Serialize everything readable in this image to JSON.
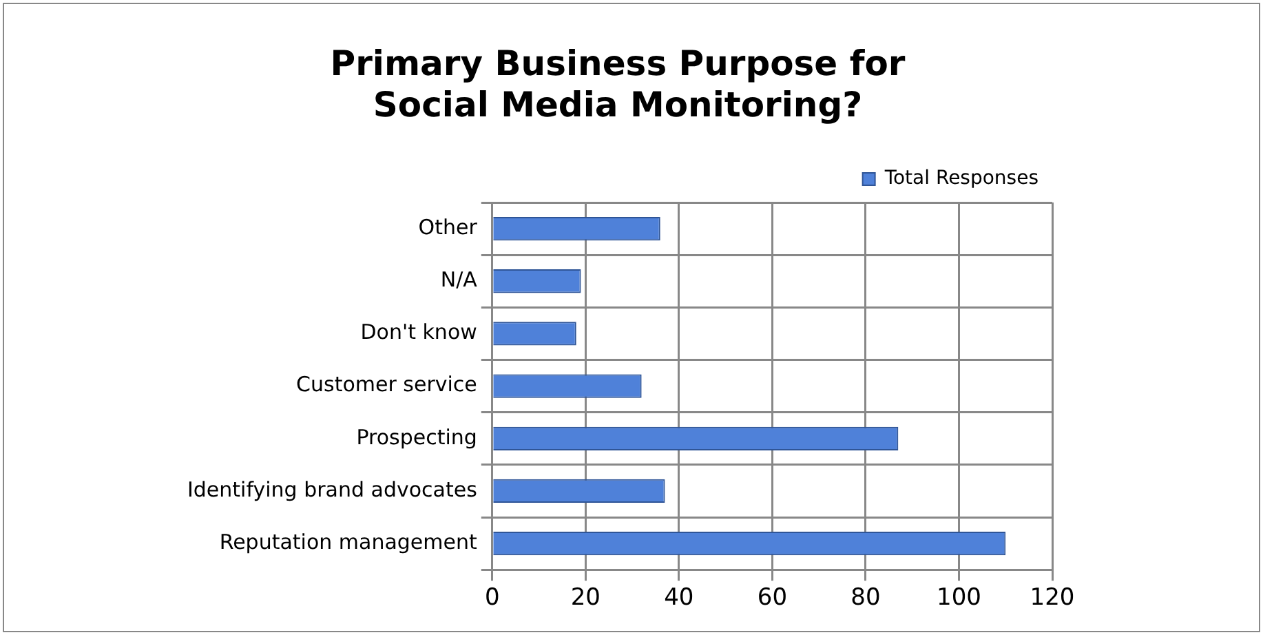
{
  "chart_data": {
    "type": "bar",
    "orientation": "horizontal",
    "title": [
      "Primary Business Purpose for",
      "Social Media Monitoring?"
    ],
    "categories": [
      "Other",
      "N/A",
      "Don't know",
      "Customer service",
      "Prospecting",
      "Identifying brand advocates",
      "Reputation management"
    ],
    "series": [
      {
        "name": "Total Responses",
        "color": "#4f81d9",
        "values": [
          36,
          19,
          18,
          32,
          87,
          37,
          110
        ]
      }
    ],
    "xlim": [
      0,
      120
    ],
    "xticks": [
      0,
      20,
      40,
      60,
      80,
      100,
      120
    ],
    "grid": true,
    "legend": "top right"
  }
}
